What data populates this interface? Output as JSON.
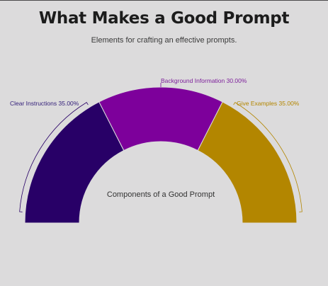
{
  "header": {
    "title": "What Makes a Good Prompt",
    "subtitle": "Elements for crafting an effective prompts."
  },
  "chart_data": {
    "type": "pie",
    "variant": "half-donut",
    "title": "What Makes a Good Prompt",
    "subtitle": "Elements for crafting an effective prompts.",
    "center_label": "Components of a Good Prompt",
    "slices": [
      {
        "name": "Clear Instructions",
        "value": 35.0,
        "label": "Clear Instructions 35.00%",
        "color": "#280067"
      },
      {
        "name": "Background Information",
        "value": 30.0,
        "label": "Background Information 30.00%",
        "color": "#7d009b"
      },
      {
        "name": "Give Examples",
        "value": 35.0,
        "label": "Give Examples 35.00%",
        "color": "#b38600"
      }
    ],
    "label_colors": [
      "#34207a",
      "#7d1f9b",
      "#b38600"
    ]
  }
}
